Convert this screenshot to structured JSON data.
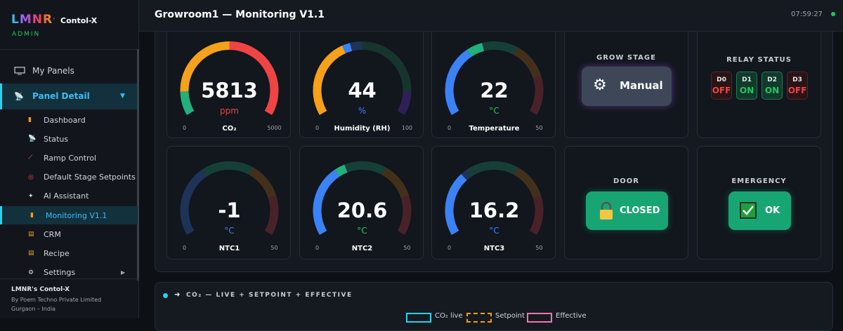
{
  "sidebar": {
    "logo": "LMNR",
    "product": "Contol-X",
    "role": "ADMIN",
    "menu": [
      "My Panels",
      "Panel Detail"
    ],
    "submenu": [
      "Dashboard",
      "Status",
      "Ramp Control",
      "Default Stage Setpoints",
      "AI Assistant",
      "Monitoring V1.1",
      "CRM",
      "Recipe",
      "Settings"
    ],
    "footer": {
      "title": "LMNR's Contol-X",
      "company": "By Poem Techno Private Limited",
      "location": "Gurgaon – India"
    }
  },
  "header": {
    "title": "Growroom1 — Monitoring V1.1",
    "time": "07:59:27"
  },
  "gauges": [
    {
      "label": "CO₂",
      "value": 5813,
      "unit": "ppm",
      "min": 0,
      "max": 5000
    },
    {
      "label": "Humidity (RH)",
      "value": 44,
      "unit": "%",
      "min": 0,
      "max": 100
    },
    {
      "label": "Temperature",
      "value": 22,
      "unit": "°C",
      "min": 0,
      "max": 50
    },
    {
      "label": "NTC1",
      "value": -1,
      "unit": "°C",
      "min": 0,
      "max": 50
    },
    {
      "label": "NTC2",
      "value": 20.6,
      "unit": "°C",
      "min": 0,
      "max": 50
    },
    {
      "label": "NTC3",
      "value": 16.2,
      "unit": "°C",
      "min": 0,
      "max": 50
    }
  ],
  "grow_stage": {
    "title": "GROW STAGE",
    "mode": "Manual"
  },
  "relay_status": {
    "title": "RELAY STATUS",
    "relays": [
      {
        "name": "D0",
        "state": "OFF"
      },
      {
        "name": "D1",
        "state": "ON"
      },
      {
        "name": "D2",
        "state": "ON"
      },
      {
        "name": "D3",
        "state": "OFF"
      }
    ]
  },
  "door": {
    "title": "DOOR",
    "state": "CLOSED"
  },
  "emergency": {
    "title": "EMERGENCY",
    "state": "OK"
  },
  "chart_section": {
    "title": "CO₂ — LIVE + SETPOINT + EFFECTIVE",
    "legend": [
      "CO₂ live",
      "Setpoint",
      "Effective"
    ]
  }
}
